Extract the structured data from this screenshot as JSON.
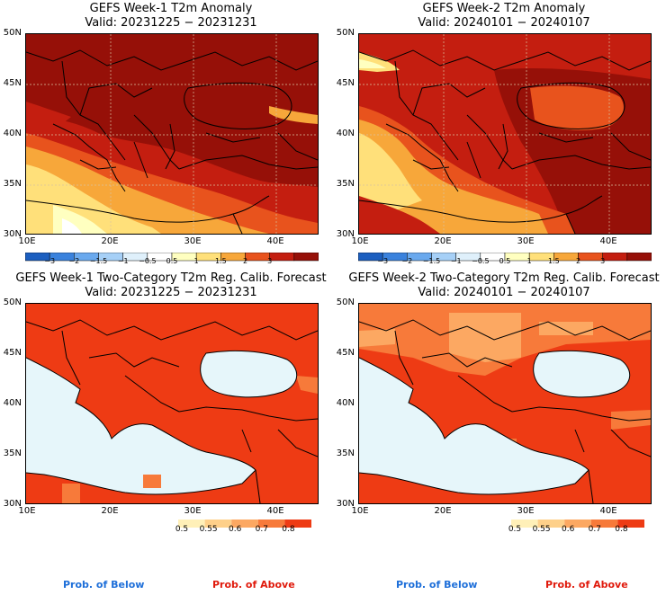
{
  "panels": [
    {
      "title_line1": "GEFS Week-1 T2m Anomaly",
      "title_line2": "Valid: 20231225 − 20231231"
    },
    {
      "title_line1": "GEFS Week-2 T2m Anomaly",
      "title_line2": "Valid: 20240101 − 20240107"
    },
    {
      "title_line1": "GEFS Week-1 Two-Category T2m Reg. Calib. Forecast",
      "title_line2": "Valid: 20231225 − 20231231"
    },
    {
      "title_line1": "GEFS Week-2 Two-Category T2m Reg. Calib. Forecast",
      "title_line2": "Valid: 20240101 − 20240107"
    }
  ],
  "lat_labels": [
    "50N",
    "45N",
    "40N",
    "35N",
    "30N"
  ],
  "lon_labels": [
    "10E",
    "20E",
    "30E",
    "40E"
  ],
  "anomaly_colorbar": {
    "ticks": [
      "−3",
      "−2",
      "−1.5",
      "−1",
      "−0.5",
      "0.5",
      "1",
      "1.5",
      "2",
      "3"
    ],
    "colors": [
      "#1c5fc0",
      "#3a82dd",
      "#6aa9ee",
      "#a6d0f7",
      "#dff0fb",
      "#ffffff",
      "#ffffc0",
      "#ffe07a",
      "#f7a73a",
      "#e8531d",
      "#c41e10",
      "#961008"
    ]
  },
  "prob_colorbar": {
    "ticks": [
      "0.5",
      "0.55",
      "0.6",
      "0.7",
      "0.8"
    ],
    "colors": [
      "#fff0b8",
      "#fed08a",
      "#fca862",
      "#f77a3a",
      "#ee3b14"
    ]
  },
  "legend": {
    "below_label": "Prob. of Below",
    "above_label": "Prob. of Above",
    "below_color": "#1e6fd9",
    "above_color": "#e01a0c"
  },
  "colors": {
    "sea_below_threshold": "#e6f6fa",
    "gridline": "#d9c2a0"
  }
}
